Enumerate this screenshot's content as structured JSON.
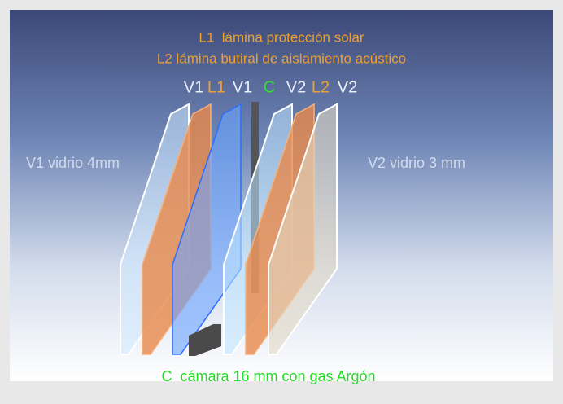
{
  "title_lines": [
    "L1  lámina protección solar",
    "L2 lámina butiral de aislamiento acústico"
  ],
  "layer_labels": [
    "V1",
    "L1",
    "V1",
    "C",
    "V2",
    "L2",
    "V2"
  ],
  "side_labels": {
    "left": "V1 vidrio 4mm",
    "right": "V2 vidrio 3 mm"
  },
  "caption": "C  cámara 16 mm con gas Argón"
}
